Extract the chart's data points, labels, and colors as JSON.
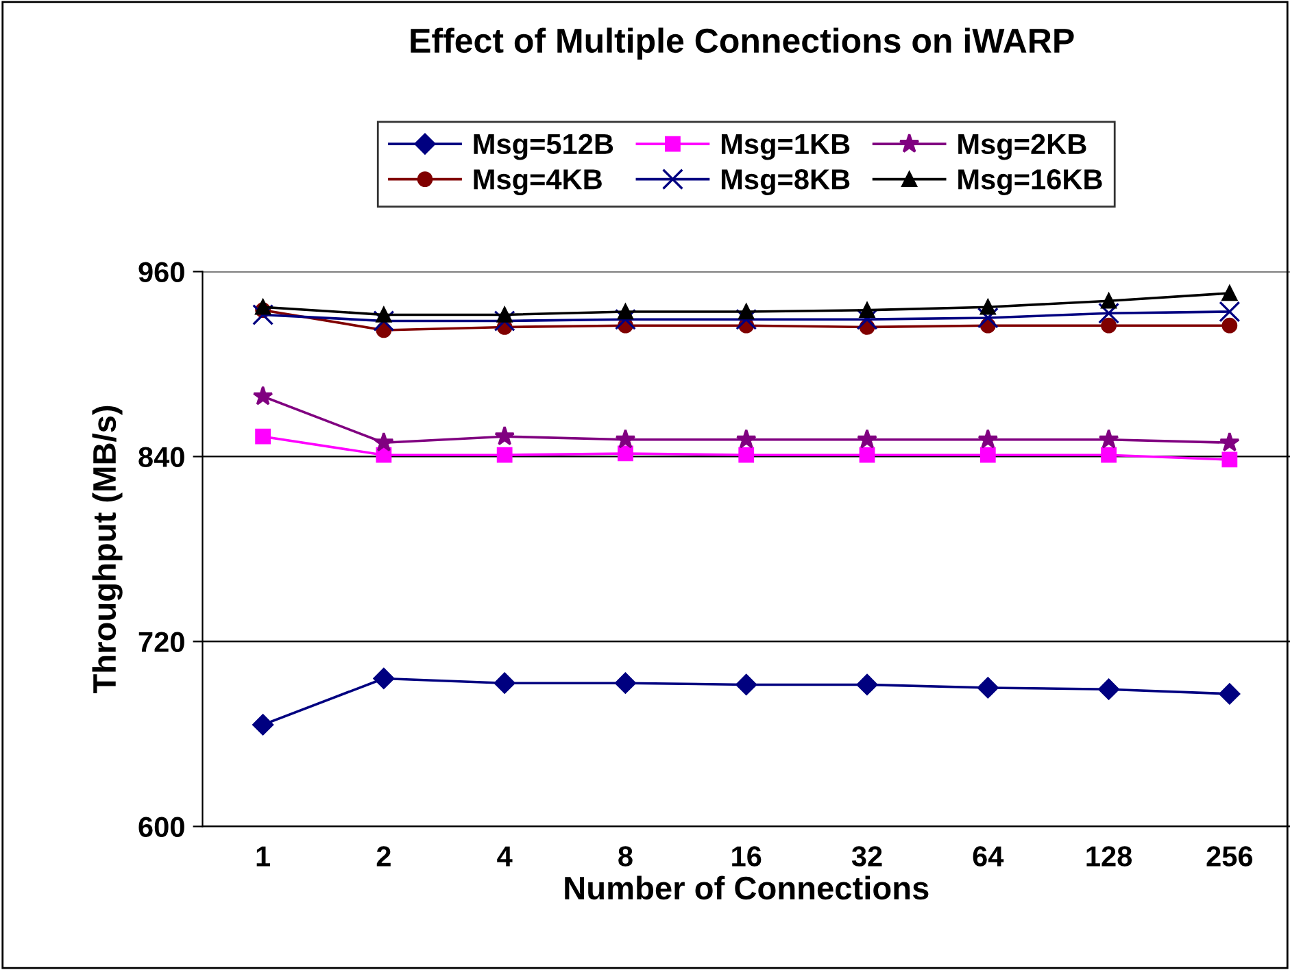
{
  "chart_data": {
    "type": "line",
    "title": "Effect of Multiple Connections on iWARP",
    "xlabel": "Number of Connections",
    "ylabel": "Throughput (MB/s)",
    "categories": [
      "1",
      "2",
      "4",
      "8",
      "16",
      "32",
      "64",
      "128",
      "256"
    ],
    "ylim": [
      600,
      960
    ],
    "yticks": [
      600,
      720,
      840,
      960
    ],
    "grid": "y",
    "legend": "top",
    "series": [
      {
        "name": "Msg=512B",
        "color": "#000080",
        "marker": "diamond",
        "values": [
          666,
          696,
          693,
          693,
          692,
          692,
          690,
          689,
          686
        ]
      },
      {
        "name": "Msg=1KB",
        "color": "#ff00ff",
        "marker": "square",
        "values": [
          853,
          841,
          841,
          842,
          841,
          841,
          841,
          841,
          838
        ]
      },
      {
        "name": "Msg=2KB",
        "color": "#800080",
        "marker": "star",
        "values": [
          879,
          849,
          853,
          851,
          851,
          851,
          851,
          851,
          849
        ]
      },
      {
        "name": "Msg=4KB",
        "color": "#800000",
        "marker": "circle",
        "values": [
          935,
          922,
          924,
          925,
          925,
          924,
          925,
          925,
          925
        ]
      },
      {
        "name": "Msg=8KB",
        "color": "#000080",
        "marker": "cross",
        "values": [
          932,
          928,
          928,
          929,
          929,
          929,
          930,
          933,
          934
        ]
      },
      {
        "name": "Msg=16KB",
        "color": "#000000",
        "marker": "triangle",
        "values": [
          937,
          932,
          932,
          934,
          934,
          935,
          937,
          941,
          946
        ]
      }
    ]
  }
}
